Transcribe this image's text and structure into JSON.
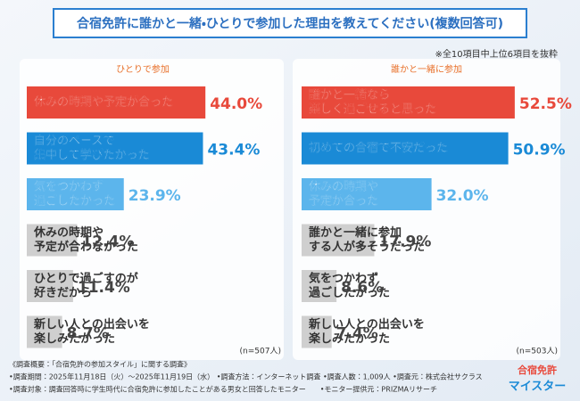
{
  "title": "合宿免許に誰かと一緒・ひとりで参加した理由を教えてください(複数回答可)",
  "note": "※全10項目中上位6項目を抜粋",
  "chart_data": [
    {
      "type": "bar",
      "subtitle": "ひとりで参加",
      "categories": [
        [
          "休みの時期や予定が合った"
        ],
        [
          "自分のペースで",
          "集中して学びたかった"
        ],
        [
          "気をつかわず",
          "過ごしたかった"
        ],
        [
          "休みの時期や",
          "予定が合わなかった"
        ],
        [
          "ひとりで過ごすのが",
          "好きだから"
        ],
        [
          "新しい人との出会いを",
          "楽しみたかった"
        ]
      ],
      "values": [
        44.0,
        43.4,
        23.9,
        12.4,
        11.4,
        8.7
      ],
      "value_labels": [
        "44.0%",
        "43.4%",
        "23.9%",
        "12.4%",
        "11.4%",
        "8.7%"
      ],
      "colors": [
        "#e8493b",
        "#1a8ad6",
        "#5cb5ec",
        "#cfcfcf",
        "#cfcfcf",
        "#cfcfcf"
      ],
      "n_label": "(n=507人)"
    },
    {
      "type": "bar",
      "subtitle": "誰かと一緒に参加",
      "categories": [
        [
          "誰かと一緒なら",
          "楽しく過ごせると思った"
        ],
        [
          "初めての合宿で不安だった"
        ],
        [
          "休みの時期や",
          "予定が合った"
        ],
        [
          "誰かと一緒に参加",
          "する人が多そうだった"
        ],
        [
          "気をつかわず",
          "過ごしたかった"
        ],
        [
          "新しい人との出会いを",
          "楽しみたかった"
        ]
      ],
      "values": [
        52.5,
        50.9,
        32.0,
        17.9,
        8.6,
        7.4
      ],
      "value_labels": [
        "52.5%",
        "50.9%",
        "32.0%",
        "17.9%",
        "8.6%",
        "7.4%"
      ],
      "colors": [
        "#e8493b",
        "#1a8ad6",
        "#5cb5ec",
        "#cfcfcf",
        "#cfcfcf",
        "#cfcfcf"
      ],
      "n_label": "(n=503人)"
    }
  ],
  "footer": [
    "《調査概要：「合宿免許の参加スタイル」に関する調査》",
    "•調査期間：2025年11月18日（火）～2025年11月19日（水） •調査方法：インターネット調査 •調査人数：1,009人 •調査元：株式会社サクラス",
    "•調査対象：調査回答時に学生時代に合宿免許に参加したことがある男女と回答したモニター　　•モニター提供元：PRIZMAリサーチ"
  ],
  "logo": [
    "合宿免許",
    "マイスター"
  ]
}
